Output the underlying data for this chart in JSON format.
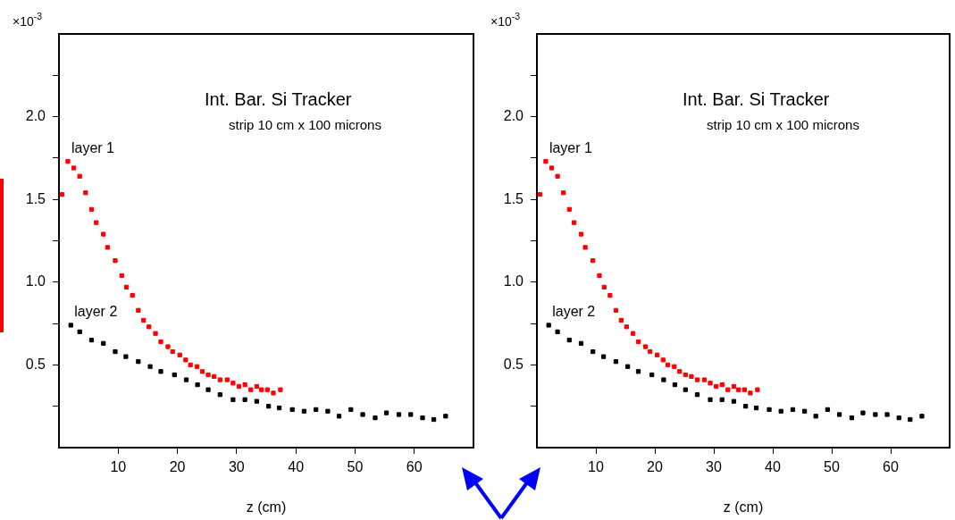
{
  "chart_data": [
    {
      "type": "scatter",
      "title": "Int. Bar. Si Tracker",
      "subtitle": "strip 10 cm x 100 microns",
      "xlabel": "z (cm)",
      "ylabel": "×10$^{-3}$",
      "marker": "square",
      "xlim": [
        0,
        70
      ],
      "xticks": [
        10,
        20,
        30,
        40,
        50,
        60
      ],
      "ylim": [
        0,
        2.5
      ],
      "yticks": [
        {
          "value": 0.25,
          "label": null
        },
        {
          "value": 0.5,
          "label": "0.5"
        },
        {
          "value": 0.75,
          "label": null
        },
        {
          "value": 1.0,
          "label": "1.0"
        },
        {
          "value": 1.25,
          "label": null
        },
        {
          "value": 1.5,
          "label": "1.5"
        },
        {
          "value": 1.75,
          "label": null
        },
        {
          "value": 2.0,
          "label": "2.0"
        },
        {
          "value": 2.25,
          "label": null
        }
      ],
      "series": [
        {
          "name": "layer 1",
          "color": "#ff0000",
          "x": [
            0.5,
            1.5,
            2.5,
            3.5,
            4.5,
            5.5,
            6.3,
            7.5,
            8.2,
            9.5,
            10.6,
            11.4,
            12.4,
            13.4,
            14.3,
            15.2,
            16.3,
            17.2,
            18.4,
            19.2,
            20.4,
            21.4,
            22.2,
            23.3,
            24.2,
            25.2,
            26.2,
            27.2,
            28.4,
            29.4,
            30.4,
            31.4,
            32.4,
            33.4,
            34.2,
            35.2,
            36.2,
            37.4
          ],
          "values": [
            1.53,
            1.73,
            1.69,
            1.64,
            1.54,
            1.44,
            1.36,
            1.29,
            1.21,
            1.13,
            1.04,
            0.97,
            0.92,
            0.83,
            0.77,
            0.73,
            0.69,
            0.64,
            0.61,
            0.58,
            0.56,
            0.53,
            0.5,
            0.49,
            0.46,
            0.44,
            0.43,
            0.41,
            0.41,
            0.39,
            0.37,
            0.38,
            0.35,
            0.37,
            0.35,
            0.35,
            0.33,
            0.35
          ]
        },
        {
          "name": "layer 2",
          "color": "#000000",
          "x": [
            2.0,
            3.5,
            5.5,
            7.5,
            9.5,
            11.3,
            13.4,
            15.4,
            17.2,
            19.5,
            21.5,
            23.4,
            25.2,
            27.2,
            29.4,
            31.4,
            33.4,
            35.4,
            37.2,
            39.4,
            41.4,
            43.4,
            45.4,
            47.3,
            49.3,
            51.3,
            53.4,
            55.3,
            57.4,
            59.4,
            61.4,
            63.3,
            65.3
          ],
          "values": [
            0.74,
            0.7,
            0.65,
            0.63,
            0.58,
            0.55,
            0.52,
            0.49,
            0.46,
            0.44,
            0.41,
            0.38,
            0.35,
            0.32,
            0.29,
            0.29,
            0.28,
            0.25,
            0.24,
            0.23,
            0.22,
            0.23,
            0.22,
            0.19,
            0.23,
            0.2,
            0.18,
            0.21,
            0.2,
            0.2,
            0.18,
            0.17,
            0.19
          ]
        }
      ]
    },
    {
      "type": "scatter",
      "title": "Int. Bar. Si Tracker",
      "subtitle": "strip 10 cm x 100 microns",
      "xlabel": "z (cm)",
      "ylabel": "×10$^{-3}$",
      "marker": "square",
      "xlim": [
        0,
        70
      ],
      "xticks": [
        10,
        20,
        30,
        40,
        50,
        60
      ],
      "ylim": [
        0,
        2.5
      ],
      "yticks": [
        {
          "value": 0.25,
          "label": null
        },
        {
          "value": 0.5,
          "label": "0.5"
        },
        {
          "value": 0.75,
          "label": null
        },
        {
          "value": 1.0,
          "label": "1.0"
        },
        {
          "value": 1.25,
          "label": null
        },
        {
          "value": 1.5,
          "label": "1.5"
        },
        {
          "value": 1.75,
          "label": null
        },
        {
          "value": 2.0,
          "label": "2.0"
        },
        {
          "value": 2.25,
          "label": null
        }
      ],
      "series": [
        {
          "name": "layer 1",
          "color": "#ff0000",
          "x": [
            0.5,
            1.5,
            2.5,
            3.5,
            4.5,
            5.5,
            6.3,
            7.5,
            8.2,
            9.5,
            10.6,
            11.4,
            12.4,
            13.4,
            14.3,
            15.2,
            16.3,
            17.2,
            18.4,
            19.2,
            20.4,
            21.4,
            22.2,
            23.3,
            24.2,
            25.2,
            26.2,
            27.2,
            28.4,
            29.4,
            30.4,
            31.4,
            32.4,
            33.4,
            34.2,
            35.2,
            36.2,
            37.4
          ],
          "values": [
            1.53,
            1.73,
            1.69,
            1.64,
            1.54,
            1.44,
            1.36,
            1.29,
            1.21,
            1.13,
            1.04,
            0.97,
            0.92,
            0.83,
            0.77,
            0.73,
            0.69,
            0.64,
            0.61,
            0.58,
            0.56,
            0.53,
            0.5,
            0.49,
            0.46,
            0.44,
            0.43,
            0.41,
            0.41,
            0.39,
            0.37,
            0.38,
            0.35,
            0.37,
            0.35,
            0.35,
            0.33,
            0.35
          ]
        },
        {
          "name": "layer 2",
          "color": "#000000",
          "x": [
            2.0,
            3.5,
            5.5,
            7.5,
            9.5,
            11.3,
            13.4,
            15.4,
            17.2,
            19.5,
            21.5,
            23.4,
            25.2,
            27.2,
            29.4,
            31.4,
            33.4,
            35.4,
            37.2,
            39.4,
            41.4,
            43.4,
            45.4,
            47.3,
            49.3,
            51.3,
            53.4,
            55.3,
            57.4,
            59.4,
            61.4,
            63.3,
            65.3
          ],
          "values": [
            0.74,
            0.7,
            0.65,
            0.63,
            0.58,
            0.55,
            0.52,
            0.49,
            0.46,
            0.44,
            0.41,
            0.38,
            0.35,
            0.32,
            0.29,
            0.29,
            0.28,
            0.25,
            0.24,
            0.23,
            0.22,
            0.23,
            0.22,
            0.19,
            0.23,
            0.2,
            0.18,
            0.21,
            0.2,
            0.2,
            0.18,
            0.17,
            0.19
          ]
        }
      ]
    }
  ]
}
